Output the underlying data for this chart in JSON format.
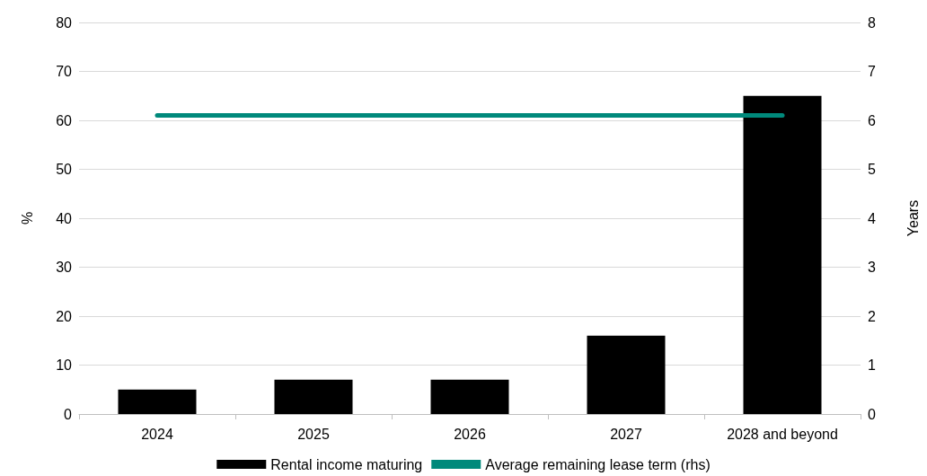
{
  "chart_data": {
    "type": "bar",
    "categories": [
      "2024",
      "2025",
      "2026",
      "2027",
      "2028 and beyond"
    ],
    "ylabel": "%",
    "y2label": "Years",
    "ylim": [
      0,
      80
    ],
    "yticks": [
      0,
      10,
      20,
      30,
      40,
      50,
      60,
      70,
      80
    ],
    "y2lim": [
      0,
      8
    ],
    "y2ticks": [
      0,
      1,
      2,
      3,
      4,
      5,
      6,
      7,
      8
    ],
    "grid": "y",
    "legend": "bottom",
    "series": [
      {
        "name": "Rental income maturing",
        "color": "#000000",
        "values": [
          5,
          7,
          7,
          16,
          65
        ]
      },
      {
        "name": "Average remaining lease term (rhs)",
        "type": "line",
        "axis": "y2",
        "color": "#00897b",
        "marker": "none",
        "values": [
          6.1,
          6.1,
          6.1,
          6.1,
          6.1
        ]
      }
    ]
  }
}
